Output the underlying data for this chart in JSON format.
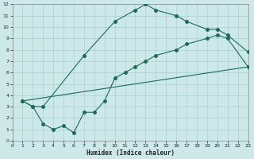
{
  "xlabel": "Humidex (Indice chaleur)",
  "bg_color": "#cce8e8",
  "grid_color": "#aad0d0",
  "line_color": "#1a6b5a",
  "xlim": [
    0,
    23
  ],
  "ylim": [
    0,
    12
  ],
  "xticks": [
    0,
    1,
    2,
    3,
    4,
    5,
    6,
    7,
    8,
    9,
    10,
    11,
    12,
    13,
    14,
    15,
    16,
    17,
    18,
    19,
    20,
    21,
    22,
    23
  ],
  "yticks": [
    0,
    1,
    2,
    3,
    4,
    5,
    6,
    7,
    8,
    9,
    10,
    11,
    12
  ],
  "line1_x": [
    1,
    2,
    3,
    7,
    10,
    12,
    13,
    14,
    16,
    17,
    19,
    20,
    21,
    23
  ],
  "line1_y": [
    3.5,
    3.0,
    3.0,
    7.5,
    10.5,
    11.5,
    12.0,
    11.5,
    11.0,
    10.5,
    9.8,
    9.8,
    9.3,
    7.8
  ],
  "line2_x": [
    1,
    23
  ],
  "line2_y": [
    3.5,
    6.5
  ],
  "line3_x": [
    1,
    2,
    3,
    4,
    5,
    6,
    7,
    8,
    9,
    10,
    11,
    12,
    13,
    14,
    16,
    17,
    19,
    20,
    21,
    23
  ],
  "line3_y": [
    3.5,
    3.0,
    1.5,
    1.0,
    1.3,
    0.7,
    2.5,
    2.5,
    3.5,
    5.5,
    6.0,
    6.5,
    7.0,
    7.5,
    8.0,
    8.5,
    9.0,
    9.3,
    9.0,
    6.5
  ]
}
